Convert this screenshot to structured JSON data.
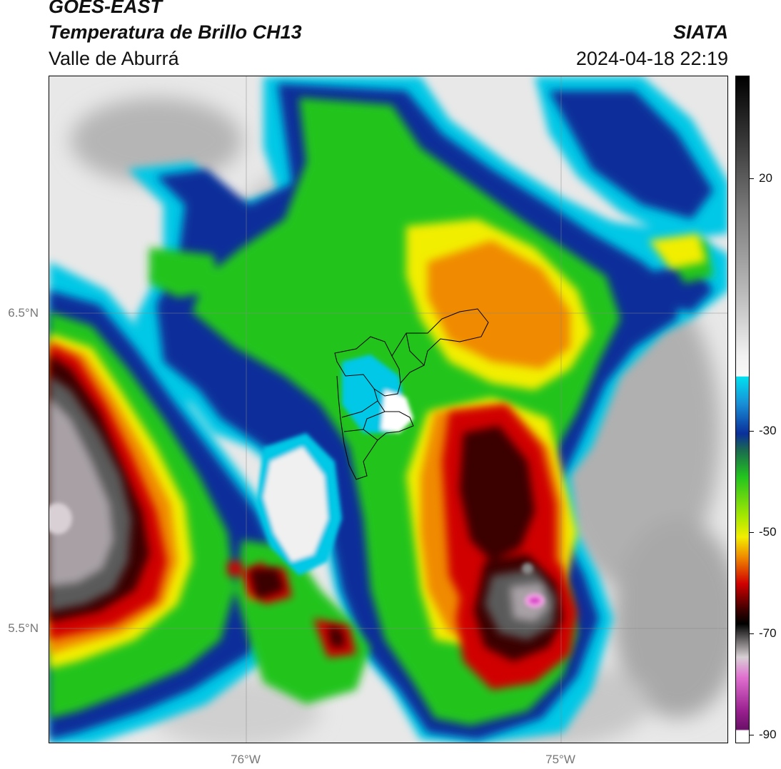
{
  "header": {
    "satellite": "GOES-EAST",
    "product": "Temperatura de Brillo CH13",
    "region": "Valle de Aburrá",
    "organization": "SIATA",
    "timestamp": "2024-04-18 22:19"
  },
  "map": {
    "lat_labels": [
      "6.5°N",
      "5.5°N"
    ],
    "lon_labels": [
      "76°W",
      "75°W"
    ]
  },
  "colorbar": {
    "tick_labels": [
      "20",
      "-30",
      "-50",
      "-70",
      "-90"
    ],
    "colors": {
      "warm_white": "#f4f4f4",
      "cyan": "#00c8e6",
      "blue": "#0a2f9a",
      "green": "#22c41e",
      "yellow": "#f2ee00",
      "orange": "#f08a00",
      "red": "#d00000",
      "dark_red": "#3a0000",
      "black": "#000000",
      "gray": "#9b9b9b",
      "magenta": "#d944c8"
    }
  }
}
